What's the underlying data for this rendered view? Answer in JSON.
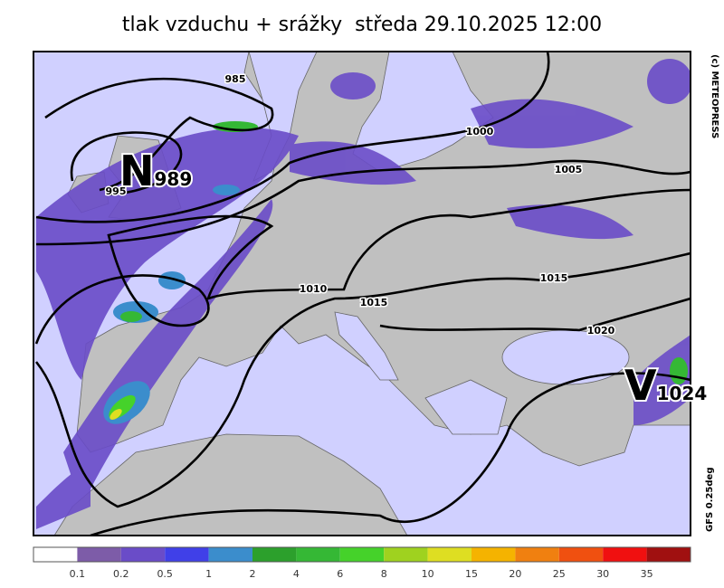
{
  "title": "tlak vzduchu + srážky  středa 29.10.2025 12:00",
  "copyright": "(c) METEOPRESS",
  "model": "GFS 0.25deg",
  "pressure_centers": [
    {
      "letter": "N",
      "value": "989"
    },
    {
      "letter": "V",
      "value": "1024"
    }
  ],
  "isobar_labels": [
    "985",
    "995",
    "1000",
    "1005",
    "1010",
    "1015",
    "1015",
    "1020"
  ],
  "legend": {
    "colors": [
      "#ffffff",
      "#7d5ca8",
      "#6a4cc8",
      "#4040e8",
      "#3b8dcc",
      "#2ca02c",
      "#35b835",
      "#45d22a",
      "#9fd21f",
      "#dede22",
      "#f5b300",
      "#f08010",
      "#f05010",
      "#f01010",
      "#a01010"
    ],
    "ticks": [
      0.1,
      0.2,
      0.5,
      1,
      2,
      4,
      6,
      8,
      10,
      15,
      20,
      25,
      30,
      35
    ]
  }
}
